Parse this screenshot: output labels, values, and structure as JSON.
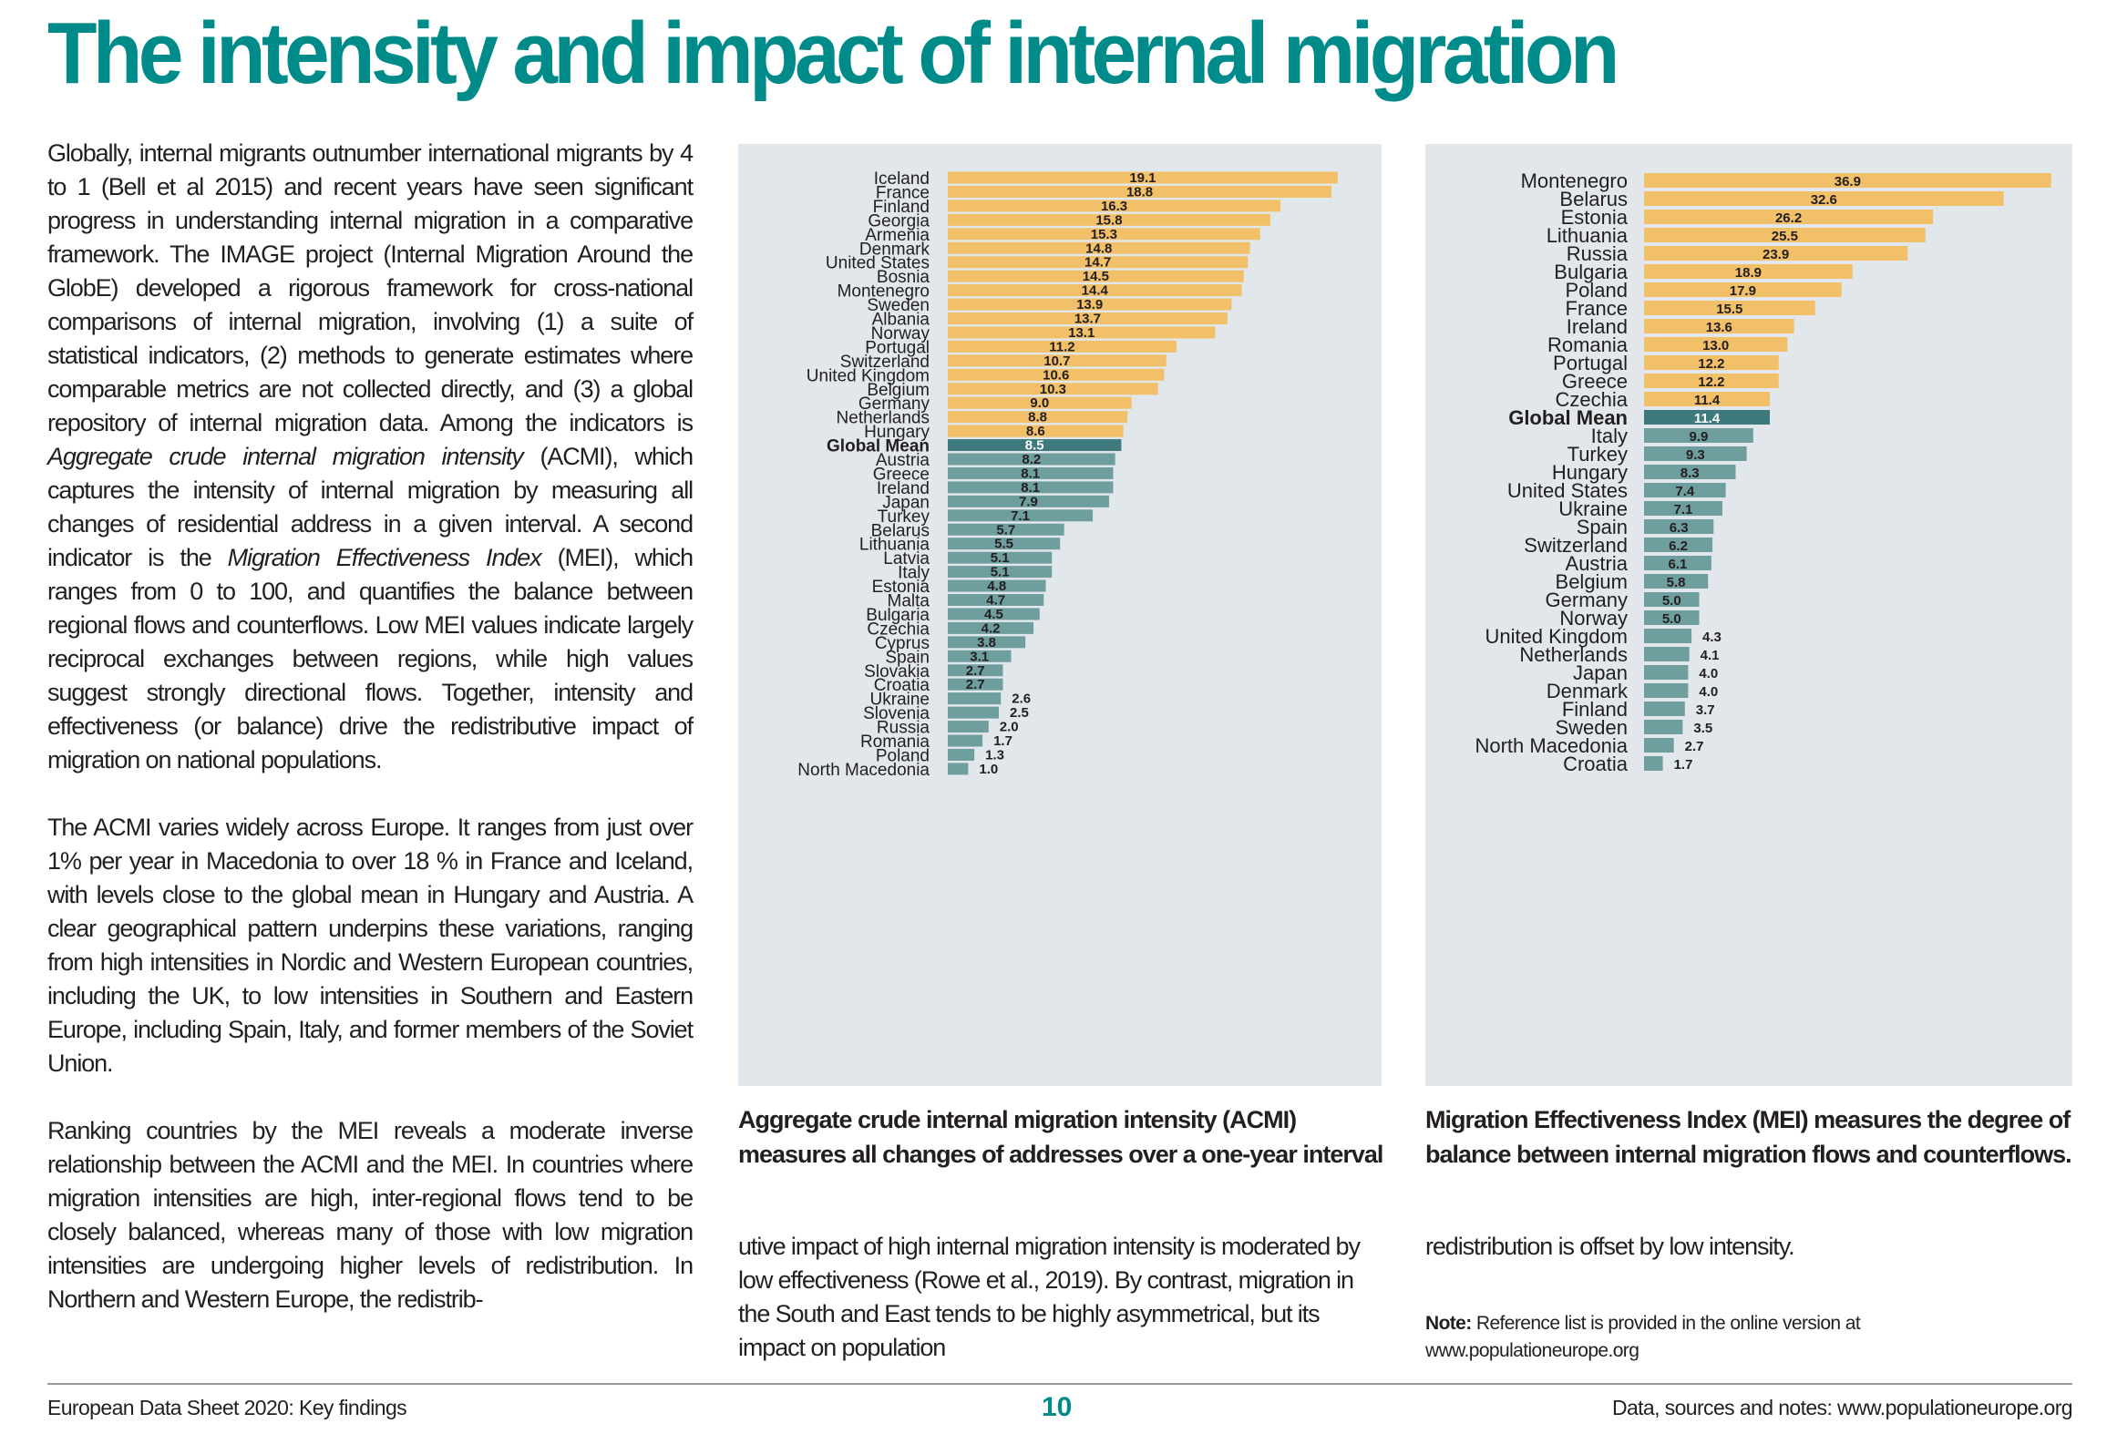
{
  "title": "The intensity and impact of internal migration",
  "left_column": {
    "paragraphs": [
      [
        {
          "t": "Globally, internal migrants outnumber international migrants by 4 to 1 (Bell et al 2015) and recent years have seen significant progress in understanding internal migration in a comparative framework. The IMAGE project (Internal Migration Around the GlobE) developed a rigorous framework for cross-national comparisons of internal migration, involving (1) a suite of statistical indicators, (2) methods to generate estimates where comparable metrics are not collected directly, and (3) a global repository of internal migration data. Among the indicators is "
        },
        {
          "t": "Aggregate crude internal migration intensity",
          "i": true
        },
        {
          "t": " (ACMI), which captures the intensity of internal migration by measuring all changes of residential address in a given interval. A second indicator is the "
        },
        {
          "t": "Migration Effectiveness Index",
          "i": true
        },
        {
          "t": " (MEI), which ranges from 0 to 100, and quantifies the balance between regional flows and counterflows. Low MEI values indicate largely reciprocal exchanges between regions, while high values suggest strongly directional flows. Together, intensity and effectiveness (or balance) drive the redistributive impact of migration on national populations."
        }
      ],
      [
        {
          "t": "The ACMI varies widely across Europe. It ranges from just over 1% per year in Macedonia to over 18 % in France and Iceland, with levels close to the global mean in Hungary and Austria. A clear geographical pattern underpins these variations, ranging from high intensities in Nordic and Western European countries, including the UK, to low intensities in Southern and Eastern Europe, including Spain, Italy, and former members of the Soviet Union."
        }
      ],
      [
        {
          "t": "Ranking countries by the MEI reveals a moderate inverse relationship between the ACMI and the MEI. In countries where migration intensities are high, inter-regional flows tend to be closely balanced, whereas many of those with low migration intensities are undergoing higher levels of redistribution. In Northern and Western Europe, the redistrib-"
        }
      ]
    ]
  },
  "middle_column_text": "utive impact of high internal migration intensity is moderated by low effectiveness (Rowe et al., 2019). By contrast, migration in the South and East tends to be highly asymmetrical, but its impact on population",
  "right_column_text": "redistribution is offset by low intensity.",
  "note": {
    "label": "Note:",
    "text": " Reference list is provided in the online version at www.populationeurope.org"
  },
  "acmi_caption": "Aggregate crude internal migration intensity (ACMI) measures all changes of addresses over a one-year interval",
  "mei_caption": "Migration Effectiveness Index (MEI) measures the degree of balance between internal migration flows and counterflows.",
  "footer": {
    "left": "European Data Sheet 2020: Key findings",
    "page": "10",
    "right": "Data, sources and notes: www.populationeurope.org"
  },
  "colors": {
    "title": "#008b8b",
    "above_mean": "#f2c068",
    "below_mean": "#6f9e9f",
    "mean": "#3e7a7d",
    "panel": "#e1e7ea"
  },
  "chart_data": [
    {
      "type": "bar",
      "orientation": "horizontal",
      "title": "",
      "xlabel": "",
      "ylabel": "",
      "xlim": [
        0,
        20
      ],
      "grid": false,
      "highlight": "Global Mean",
      "categories": [
        "Iceland",
        "France",
        "Finland",
        "Georgia",
        "Armenia",
        "Denmark",
        "United States",
        "Bosnia",
        "Montenegro",
        "Sweden",
        "Albania",
        "Norway",
        "Portugal",
        "Switzerland",
        "United Kingdom",
        "Belgium",
        "Germany",
        "Netherlands",
        "Hungary",
        "Global Mean",
        "Austria",
        "Greece",
        "Ireland",
        "Japan",
        "Turkey",
        "Belarus",
        "Lithuania",
        "Latvia",
        "Italy",
        "Estonia",
        "Malta",
        "Bulgaria",
        "Czechia",
        "Cyprus",
        "Spain",
        "Slovakia",
        "Croatia",
        "Ukraine",
        "Slovenia",
        "Russia",
        "Romania",
        "Poland",
        "North Macedonia"
      ],
      "values": [
        19.1,
        18.8,
        16.3,
        15.8,
        15.3,
        14.8,
        14.7,
        14.5,
        14.4,
        13.9,
        13.7,
        13.1,
        11.2,
        10.7,
        10.6,
        10.3,
        9.0,
        8.8,
        8.6,
        8.5,
        8.2,
        8.1,
        8.1,
        7.9,
        7.1,
        5.7,
        5.5,
        5.1,
        5.1,
        4.8,
        4.7,
        4.5,
        4.2,
        3.8,
        3.1,
        2.7,
        2.7,
        2.6,
        2.5,
        2.0,
        1.7,
        1.3,
        1.0
      ],
      "value_labels": [
        "19.1",
        "18.8",
        "16.3",
        "15.8",
        "15.3",
        "14.8",
        "14.7",
        "14.5",
        "14.4",
        "13.9",
        "13.7",
        "13.1",
        "11.2",
        "10.7",
        "10.6",
        "10.3",
        "9.0",
        "8.8",
        "8.6",
        "8.5",
        "8.2",
        "8.1",
        "8.1",
        "7.9",
        "7.1",
        "5.7",
        "5.5",
        "5.1",
        "5.1",
        "4.8",
        "4.7",
        "4.5",
        "4.2",
        "3.8",
        "3.1",
        "2.7",
        "2.7",
        "2.6",
        "2.5",
        "2.0",
        "1.7",
        "1.3",
        "1.0"
      ]
    },
    {
      "type": "bar",
      "orientation": "horizontal",
      "title": "",
      "xlabel": "",
      "ylabel": "",
      "xlim": [
        0,
        38
      ],
      "grid": false,
      "highlight": "Global Mean",
      "categories": [
        "Montenegro",
        "Belarus",
        "Estonia",
        "Lithuania",
        "Russia",
        "Bulgaria",
        "Poland",
        "France",
        "Ireland",
        "Romania",
        "Portugal",
        "Greece",
        "Czechia",
        "Global Mean",
        "Italy",
        "Turkey",
        "Hungary",
        "United States",
        "Ukraine",
        "Spain",
        "Switzerland",
        "Austria",
        "Belgium",
        "Germany",
        "Norway",
        "United Kingdom",
        "Netherlands",
        "Japan",
        "Denmark",
        "Finland",
        "Sweden",
        "North Macedonia",
        "Croatia"
      ],
      "values": [
        36.9,
        32.6,
        26.2,
        25.5,
        23.9,
        18.9,
        17.9,
        15.5,
        13.6,
        13.0,
        12.2,
        12.2,
        11.4,
        11.4,
        9.9,
        9.3,
        8.3,
        7.4,
        7.1,
        6.3,
        6.2,
        6.1,
        5.8,
        5.0,
        5.0,
        4.3,
        4.1,
        4.0,
        4.0,
        3.7,
        3.5,
        2.7,
        1.7
      ],
      "value_labels": [
        "36.9",
        "32.6",
        "26.2",
        "25.5",
        "23.9",
        "18.9",
        "17.9",
        "15.5",
        "13.6",
        "13.0",
        "12.2",
        "12.2",
        "11.4",
        "11.4",
        "9.9",
        "9.3",
        "8.3",
        "7.4",
        "7.1",
        "6.3",
        "6.2",
        "6.1",
        "5.8",
        "5.0",
        "5.0",
        "4.3",
        "4.1",
        "4.0",
        "4.0",
        "3.7",
        "3.5",
        "2.7",
        "1.7"
      ]
    }
  ]
}
